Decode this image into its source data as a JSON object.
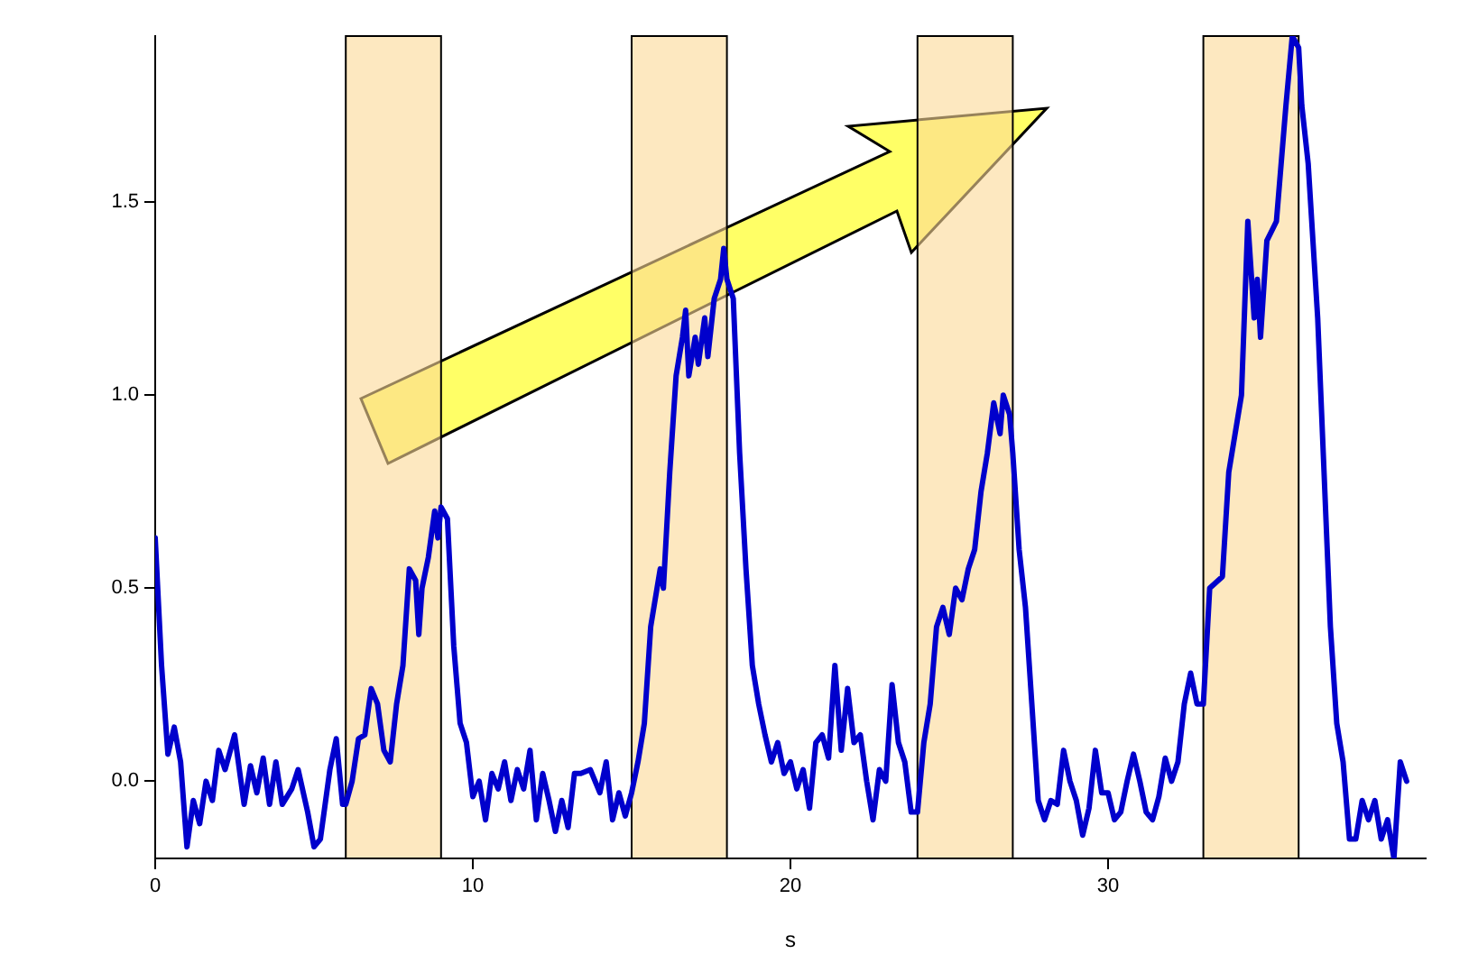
{
  "chart_data": {
    "type": "line",
    "xlabel": "s",
    "xlim": [
      0,
      40
    ],
    "xticks": [
      0,
      10,
      20,
      30
    ],
    "ylim": [
      -0.2,
      1.93
    ],
    "yticks": [
      {
        "value": 0,
        "label": "0.0"
      },
      {
        "value": 0.5,
        "label": "0.5"
      },
      {
        "value": 1,
        "label": "1.0"
      },
      {
        "value": 1.5,
        "label": "1.5"
      }
    ],
    "grid": false,
    "legend": false,
    "marker": "none",
    "line_style": "solid",
    "bands": [
      {
        "axis": "x",
        "from": 6,
        "to": 9,
        "color": "#fde8c0"
      },
      {
        "axis": "x",
        "from": 15,
        "to": 18,
        "color": "#fde8c0"
      },
      {
        "axis": "x",
        "from": 24,
        "to": 27,
        "color": "#fde8c0"
      },
      {
        "axis": "x",
        "from": 33,
        "to": 36,
        "color": "#fde8c0"
      }
    ],
    "series": [
      {
        "color": "#0000cc",
        "x": [
          0,
          0.2,
          0.4,
          0.6,
          0.8,
          1.0,
          1.2,
          1.4,
          1.6,
          1.8,
          2.0,
          2.2,
          2.5,
          2.8,
          3.0,
          3.2,
          3.4,
          3.6,
          3.8,
          4.0,
          4.3,
          4.5,
          4.8,
          5.0,
          5.2,
          5.5,
          5.7,
          5.9,
          6.0,
          6.2,
          6.4,
          6.6,
          6.8,
          7.0,
          7.2,
          7.4,
          7.6,
          7.8,
          8.0,
          8.2,
          8.3,
          8.4,
          8.6,
          8.8,
          8.9,
          9.0,
          9.2,
          9.4,
          9.6,
          9.8,
          10.0,
          10.2,
          10.4,
          10.6,
          10.8,
          11.0,
          11.2,
          11.4,
          11.6,
          11.8,
          12.0,
          12.2,
          12.4,
          12.6,
          12.8,
          13.0,
          13.2,
          13.4,
          13.7,
          14.0,
          14.2,
          14.4,
          14.6,
          14.8,
          15.0,
          15.2,
          15.4,
          15.6,
          15.9,
          16.0,
          16.2,
          16.4,
          16.6,
          16.7,
          16.8,
          17.0,
          17.1,
          17.3,
          17.4,
          17.6,
          17.8,
          17.9,
          18.0,
          18.2,
          18.4,
          18.6,
          18.8,
          19.0,
          19.2,
          19.4,
          19.6,
          19.8,
          20.0,
          20.2,
          20.4,
          20.6,
          20.8,
          21.0,
          21.2,
          21.4,
          21.6,
          21.8,
          22.0,
          22.2,
          22.4,
          22.6,
          22.8,
          23.0,
          23.2,
          23.4,
          23.6,
          23.8,
          24.0,
          24.2,
          24.4,
          24.6,
          24.8,
          25.0,
          25.2,
          25.4,
          25.6,
          25.8,
          26.0,
          26.2,
          26.4,
          26.6,
          26.7,
          26.9,
          27.0,
          27.2,
          27.4,
          27.6,
          27.8,
          28.0,
          28.2,
          28.4,
          28.6,
          28.8,
          29.0,
          29.2,
          29.4,
          29.6,
          29.8,
          30.0,
          30.2,
          30.4,
          30.6,
          30.8,
          31.0,
          31.2,
          31.4,
          31.6,
          31.8,
          32.0,
          32.2,
          32.4,
          32.6,
          32.8,
          33.0,
          33.2,
          33.6,
          33.8,
          34.2,
          34.4,
          34.6,
          34.7,
          34.8,
          35.0,
          35.3,
          35.6,
          35.8,
          36.0,
          36.1,
          36.3,
          36.6,
          36.9,
          37.0,
          37.2,
          37.4,
          37.6,
          37.8,
          38.0,
          38.2,
          38.4,
          38.6,
          38.8,
          39.0,
          39.2,
          39.4
        ],
        "values": [
          0.63,
          0.3,
          0.07,
          0.14,
          0.05,
          -0.17,
          -0.05,
          -0.11,
          0.0,
          -0.05,
          0.08,
          0.03,
          0.12,
          -0.06,
          0.04,
          -0.03,
          0.06,
          -0.06,
          0.05,
          -0.06,
          -0.02,
          0.03,
          -0.08,
          -0.17,
          -0.15,
          0.03,
          0.11,
          -0.06,
          -0.06,
          0.0,
          0.11,
          0.12,
          0.24,
          0.2,
          0.08,
          0.05,
          0.2,
          0.3,
          0.55,
          0.52,
          0.38,
          0.5,
          0.58,
          0.7,
          0.63,
          0.71,
          0.68,
          0.35,
          0.15,
          0.1,
          -0.04,
          0.0,
          -0.1,
          0.02,
          -0.02,
          0.05,
          -0.05,
          0.03,
          -0.02,
          0.08,
          -0.1,
          0.02,
          -0.05,
          -0.13,
          -0.05,
          -0.12,
          0.02,
          0.02,
          0.03,
          -0.03,
          0.05,
          -0.1,
          -0.03,
          -0.09,
          -0.03,
          0.05,
          0.15,
          0.4,
          0.55,
          0.5,
          0.8,
          1.05,
          1.15,
          1.22,
          1.05,
          1.15,
          1.08,
          1.2,
          1.1,
          1.25,
          1.3,
          1.38,
          1.3,
          1.25,
          0.85,
          0.55,
          0.3,
          0.2,
          0.12,
          0.05,
          0.1,
          0.02,
          0.05,
          -0.02,
          0.03,
          -0.07,
          0.1,
          0.12,
          0.06,
          0.3,
          0.08,
          0.24,
          0.1,
          0.12,
          0.0,
          -0.1,
          0.03,
          0.0,
          0.25,
          0.1,
          0.05,
          -0.08,
          -0.08,
          0.1,
          0.2,
          0.4,
          0.45,
          0.38,
          0.5,
          0.47,
          0.55,
          0.6,
          0.75,
          0.85,
          0.98,
          0.9,
          1.0,
          0.95,
          0.85,
          0.6,
          0.45,
          0.2,
          -0.05,
          -0.1,
          -0.05,
          -0.06,
          0.08,
          0.0,
          -0.05,
          -0.14,
          -0.07,
          0.08,
          -0.03,
          -0.03,
          -0.1,
          -0.08,
          0.0,
          0.07,
          0.0,
          -0.08,
          -0.1,
          -0.04,
          0.06,
          0.0,
          0.05,
          0.2,
          0.28,
          0.2,
          0.2,
          0.5,
          0.53,
          0.8,
          1.0,
          1.45,
          1.2,
          1.3,
          1.15,
          1.4,
          1.45,
          1.75,
          1.93,
          1.9,
          1.75,
          1.6,
          1.2,
          0.6,
          0.4,
          0.15,
          0.05,
          -0.15,
          -0.15,
          -0.05,
          -0.1,
          -0.05,
          -0.15,
          -0.1,
          -0.2,
          0.05,
          0.0
        ]
      }
    ]
  }
}
